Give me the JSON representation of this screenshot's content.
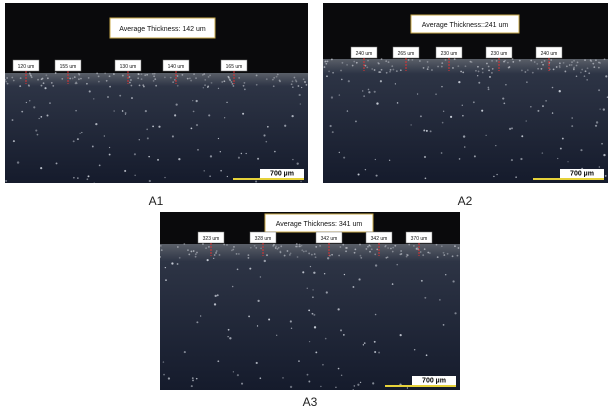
{
  "panels": [
    {
      "caption": "A1",
      "average": "Average Thickness: 142 um",
      "labels": [
        "120 um",
        "155 um",
        "130 um",
        "140 um",
        "165 um"
      ],
      "scale": "700 µm"
    },
    {
      "caption": "A2",
      "average": "Average Thickness::241 um",
      "labels": [
        "240 um",
        "265 um",
        "230 um",
        "230 um",
        "240 um"
      ],
      "scale": "700 µm"
    },
    {
      "caption": "A3",
      "average": "Average Thickness: 341 um",
      "labels": [
        "323 um",
        "328 um",
        "342 um",
        "342 um",
        "370 um"
      ],
      "scale": "700 µm"
    }
  ]
}
